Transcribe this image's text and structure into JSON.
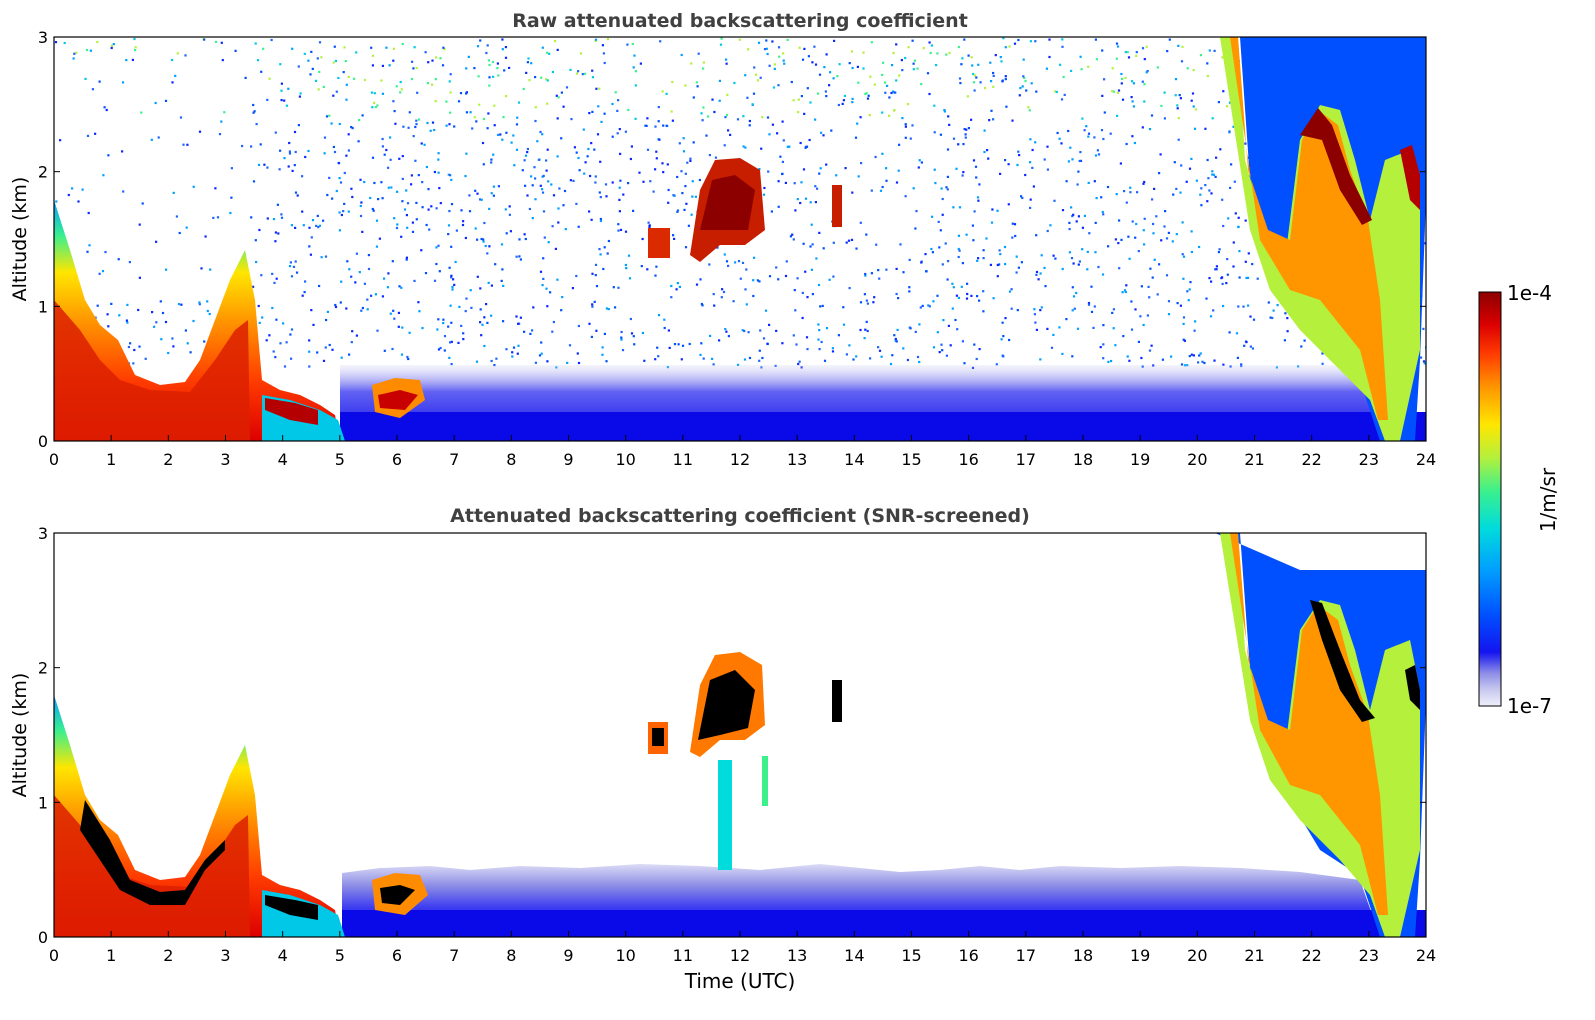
{
  "chart_data": [
    {
      "type": "heatmap",
      "title": "Raw attenuated backscattering coefficient",
      "xlabel": "",
      "ylabel": "Altitude (km)",
      "xlim": [
        0,
        24
      ],
      "ylim": [
        0,
        3
      ],
      "x_ticks": [
        "0",
        "1",
        "2",
        "3",
        "4",
        "5",
        "6",
        "7",
        "8",
        "9",
        "10",
        "11",
        "12",
        "13",
        "14",
        "15",
        "16",
        "17",
        "18",
        "19",
        "20",
        "21",
        "22",
        "23",
        "24"
      ],
      "y_ticks": [
        "0",
        "1",
        "2",
        "3"
      ],
      "features": [
        {
          "kind": "cloud_layer",
          "t": [
            0.0,
            0.5,
            1.0,
            1.5,
            2.0,
            2.5,
            3.0,
            3.3
          ],
          "z": [
            1.0,
            0.8,
            0.5,
            0.33,
            0.33,
            0.45,
            0.75,
            1.4
          ]
        },
        {
          "kind": "low_cloud",
          "t": [
            3.6,
            4.0,
            4.5,
            5.0
          ],
          "z": [
            0.35,
            0.25,
            0.2,
            0.1
          ]
        },
        {
          "kind": "low_cloud",
          "t": [
            5.6,
            6.0,
            6.4
          ],
          "z": [
            0.3,
            0.35,
            0.35
          ]
        },
        {
          "kind": "elevated_cloud",
          "t": [
            10.4,
            10.8
          ],
          "z": [
            1.4,
            1.6
          ]
        },
        {
          "kind": "elevated_cloud",
          "t": [
            11.3,
            12.4
          ],
          "z": [
            1.5,
            2.0
          ]
        },
        {
          "kind": "elevated_cloud",
          "t": [
            13.6,
            13.75
          ],
          "z": [
            1.6,
            1.8
          ]
        },
        {
          "kind": "cloud_layer",
          "t": [
            20.6,
            21.0,
            22.0,
            22.5,
            23.0,
            23.3,
            23.8
          ],
          "z": [
            2.5,
            1.7,
            1.2,
            2.4,
            1.6,
            0.1,
            1.7
          ]
        }
      ]
    },
    {
      "type": "heatmap",
      "title": "Attenuated backscattering coefficient (SNR-screened)",
      "xlabel": "Time (UTC)",
      "ylabel": "Altitude (km)",
      "xlim": [
        0,
        24
      ],
      "ylim": [
        0,
        3
      ],
      "x_ticks": [
        "0",
        "1",
        "2",
        "3",
        "4",
        "5",
        "6",
        "7",
        "8",
        "9",
        "10",
        "11",
        "12",
        "13",
        "14",
        "15",
        "16",
        "17",
        "18",
        "19",
        "20",
        "21",
        "22",
        "23",
        "24"
      ],
      "y_ticks": [
        "0",
        "1",
        "2",
        "3"
      ],
      "features": [
        {
          "kind": "cloud_layer",
          "t": [
            0.0,
            0.5,
            1.0,
            1.5,
            2.0,
            2.5,
            3.0,
            3.3
          ],
          "z": [
            1.0,
            0.8,
            0.5,
            0.33,
            0.33,
            0.45,
            0.75,
            1.4
          ]
        },
        {
          "kind": "boundary_layer",
          "t": [
            5.1,
            7,
            10,
            13,
            16,
            19,
            21,
            22.5
          ],
          "z": [
            0.45,
            0.4,
            0.42,
            0.45,
            0.38,
            0.42,
            0.45,
            0.35
          ]
        },
        {
          "kind": "elevated_cloud",
          "t": [
            10.4,
            12.4
          ],
          "z": [
            1.4,
            2.0
          ]
        },
        {
          "kind": "cloud_layer",
          "t": [
            20.6,
            21.0,
            22.0,
            22.5,
            23.0,
            23.3,
            23.8
          ],
          "z": [
            2.5,
            1.7,
            1.2,
            2.4,
            1.6,
            0.1,
            1.7
          ]
        }
      ]
    }
  ],
  "colorbar": {
    "label": "1/m/sr",
    "max_label": "1e-4",
    "min_label": "1e-7",
    "colors": [
      "#f0f0fa",
      "#c8c8f0",
      "#8c8ce6",
      "#1414f0",
      "#0050ff",
      "#00a0ff",
      "#00dcdc",
      "#3cf08c",
      "#b4f03c",
      "#ffe600",
      "#ff9600",
      "#ff3c00",
      "#dc0000",
      "#8c0000"
    ]
  }
}
